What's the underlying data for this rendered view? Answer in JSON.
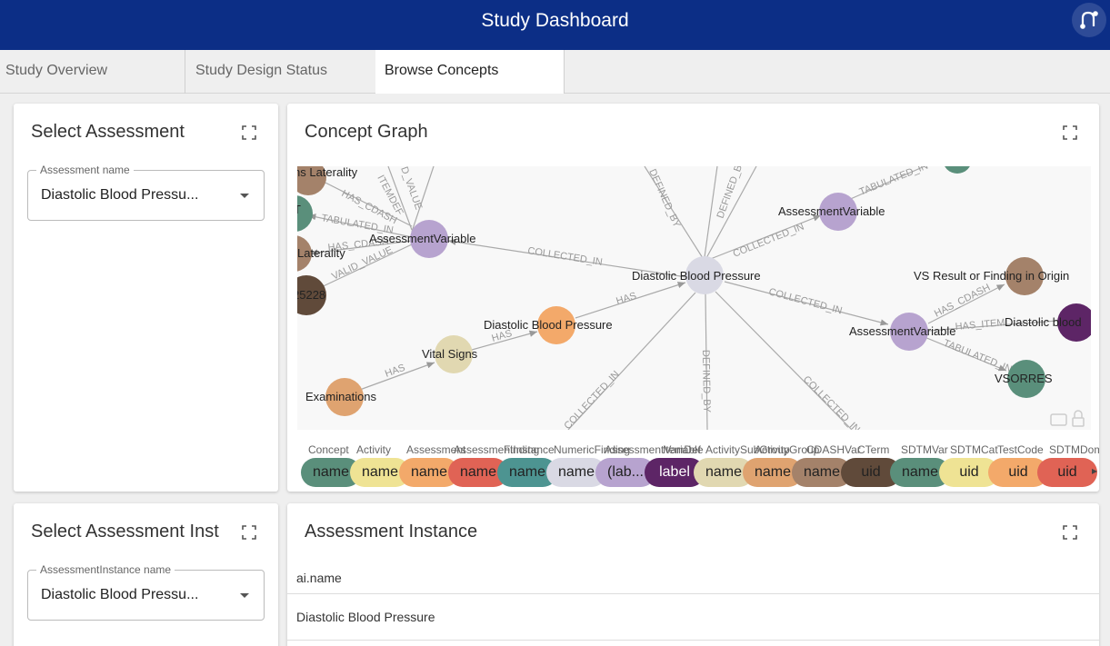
{
  "app": {
    "title": "Study Dashboard",
    "logo_icon": "neo4j-logo-icon"
  },
  "tabs": [
    {
      "label": "Study Overview"
    },
    {
      "label": "Study Design Status"
    },
    {
      "label": "Browse Concepts"
    }
  ],
  "select_assessment": {
    "title": "Select Assessment",
    "field_label": "Assessment name",
    "value": "Diastolic Blood Pressu..."
  },
  "concept_graph": {
    "title": "Concept Graph",
    "nodes": [
      {
        "label": "ns Laterality"
      },
      {
        "label": "T"
      },
      {
        "label": "Laterality"
      },
      {
        "label": "25228"
      },
      {
        "label": "AssessmentVariable"
      },
      {
        "label": "Diastolic Blood Pressure"
      },
      {
        "label": "AssessmentVariable"
      },
      {
        "label": "Diastolic Blood Pressure"
      },
      {
        "label": "Vital Signs"
      },
      {
        "label": "Examinations"
      },
      {
        "label": "AssessmentVariable"
      },
      {
        "label": "VS Result or Finding in Origin"
      },
      {
        "label": "Diastolic blood"
      },
      {
        "label": "VSORRES"
      }
    ],
    "edges": [
      {
        "label": "HAS_CDASH"
      },
      {
        "label": "ITEMDEF"
      },
      {
        "label": "D_VALUE"
      },
      {
        "label": "TABULATED_IN"
      },
      {
        "label": "HAS_CDASH"
      },
      {
        "label": "VALID_VALUE"
      },
      {
        "label": "COLLECTED_IN"
      },
      {
        "label": "DEFINED_BY"
      },
      {
        "label": "DEFINED_BY"
      },
      {
        "label": "COLLECTED_IN"
      },
      {
        "label": "TABULATED_IN"
      },
      {
        "label": "HAS"
      },
      {
        "label": "HAS"
      },
      {
        "label": "HAS"
      },
      {
        "label": "COLLECTED_IN"
      },
      {
        "label": "COLLECTED_IN"
      },
      {
        "label": "DEFINED_BY"
      },
      {
        "label": "COLLECTED_IN"
      },
      {
        "label": "HAS_CDASH"
      },
      {
        "label": "HAS_ITEM"
      },
      {
        "label": "TABULATED_IN"
      }
    ],
    "legend": [
      {
        "type": "Concept",
        "prop": "name",
        "color": "#5a8f7b"
      },
      {
        "type": "Activity",
        "prop": "name",
        "color": "#efe394"
      },
      {
        "type": "Assessment",
        "prop": "name",
        "color": "#f3a96a"
      },
      {
        "type": "AssessmentInstance",
        "prop": "name",
        "color": "#e06355"
      },
      {
        "type": "Finding",
        "prop": "name",
        "color": "#4d9491"
      },
      {
        "type": "NumericFinding",
        "prop": "name",
        "color": "#d9d9e4"
      },
      {
        "type": "AssessmentVariable",
        "prop": "(lab...",
        "color": "#b7a3cf"
      },
      {
        "type": "ItemDef",
        "prop": "label",
        "color": "#5d2566"
      },
      {
        "type": "ActivitySubGroup",
        "prop": "name",
        "color": "#e1d8b1"
      },
      {
        "type": "ActivityGroup",
        "prop": "name",
        "color": "#dfa370"
      },
      {
        "type": "CDASHVar",
        "prop": "name",
        "color": "#a4826a"
      },
      {
        "type": "CTerm",
        "prop": "uid",
        "color": "#604a3a"
      },
      {
        "type": "SDTMVar",
        "prop": "name",
        "color": "#5a8f7b"
      },
      {
        "type": "SDTMCat",
        "prop": "uid",
        "color": "#efe394"
      },
      {
        "type": "TestCode",
        "prop": "uid",
        "color": "#f3a96a"
      },
      {
        "type": "SDTMDom",
        "prop": "uid",
        "color": "#e06355"
      }
    ]
  },
  "select_instance": {
    "title": "Select Assessment Inst",
    "field_label": "AssessmentInstance name",
    "value": "Diastolic Blood Pressu..."
  },
  "assessment_instance": {
    "title": "Assessment Instance",
    "column": "ai.name",
    "rows": [
      {
        "name": "Diastolic Blood Pressure"
      }
    ]
  }
}
